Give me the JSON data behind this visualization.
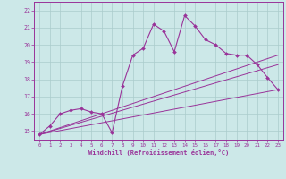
{
  "xlabel": "Windchill (Refroidissement éolien,°C)",
  "background_color": "#cce8e8",
  "line_color": "#993399",
  "grid_color": "#aacccc",
  "xlim": [
    -0.5,
    23.5
  ],
  "ylim": [
    14.5,
    22.5
  ],
  "xticks": [
    0,
    1,
    2,
    3,
    4,
    5,
    6,
    7,
    8,
    9,
    10,
    11,
    12,
    13,
    14,
    15,
    16,
    17,
    18,
    19,
    20,
    21,
    22,
    23
  ],
  "yticks": [
    15,
    16,
    17,
    18,
    19,
    20,
    21,
    22
  ],
  "main_series": {
    "x": [
      0,
      1,
      2,
      3,
      4,
      5,
      6,
      7,
      8,
      9,
      10,
      11,
      12,
      13,
      14,
      15,
      16,
      17,
      18,
      19,
      20,
      21,
      22,
      23
    ],
    "y": [
      14.8,
      15.3,
      16.0,
      16.2,
      16.3,
      16.1,
      16.0,
      14.9,
      17.6,
      19.4,
      19.8,
      21.2,
      20.8,
      19.6,
      21.7,
      21.1,
      20.3,
      20.0,
      19.5,
      19.4,
      19.4,
      18.85,
      18.1,
      17.4
    ]
  },
  "straight_lines": [
    {
      "x": [
        0,
        23
      ],
      "y": [
        14.8,
        17.4
      ]
    },
    {
      "x": [
        0,
        23
      ],
      "y": [
        14.8,
        19.4
      ]
    },
    {
      "x": [
        0,
        23
      ],
      "y": [
        14.8,
        18.85
      ]
    }
  ]
}
